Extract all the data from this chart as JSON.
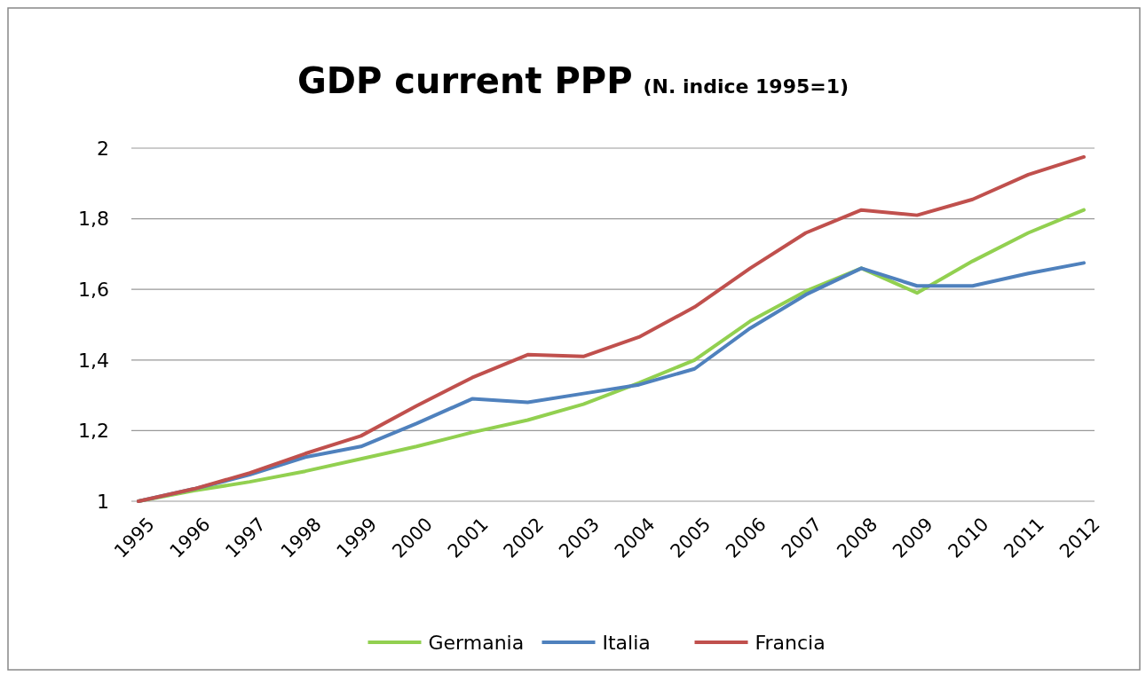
{
  "chart_data": {
    "type": "line",
    "title": "GDP current PPP",
    "subtitle": "(N. indice 1995=1)",
    "categories": [
      "1995",
      "1996",
      "1997",
      "1998",
      "1999",
      "2000",
      "2001",
      "2002",
      "2003",
      "2004",
      "2005",
      "2006",
      "2007",
      "2008",
      "2009",
      "2010",
      "2011",
      "2012"
    ],
    "series": [
      {
        "name": "Germania",
        "color": "#92d050",
        "values": [
          1.0,
          1.03,
          1.055,
          1.085,
          1.12,
          1.155,
          1.195,
          1.23,
          1.275,
          1.335,
          1.4,
          1.51,
          1.595,
          1.66,
          1.59,
          1.68,
          1.76,
          1.825
        ]
      },
      {
        "name": "Italia",
        "color": "#4f81bd",
        "values": [
          1.0,
          1.035,
          1.075,
          1.125,
          1.155,
          1.22,
          1.29,
          1.28,
          1.305,
          1.33,
          1.375,
          1.49,
          1.585,
          1.66,
          1.61,
          1.61,
          1.645,
          1.675
        ]
      },
      {
        "name": "Francia",
        "color": "#c0504d",
        "values": [
          1.0,
          1.035,
          1.08,
          1.135,
          1.185,
          1.27,
          1.35,
          1.415,
          1.41,
          1.465,
          1.55,
          1.66,
          1.76,
          1.825,
          1.81,
          1.855,
          1.925,
          1.975
        ]
      }
    ],
    "ylim": [
      1,
      2
    ],
    "yticks": [
      1,
      {
        "value": 1.2,
        "label": "1,2"
      },
      {
        "value": 1.4,
        "label": "1,4"
      },
      {
        "value": 1.6,
        "label": "1,6"
      },
      {
        "value": 1.8,
        "label": "1,8"
      },
      2
    ],
    "grid": "y",
    "legend": "bottom",
    "marker": "none",
    "line_style": "solid"
  }
}
